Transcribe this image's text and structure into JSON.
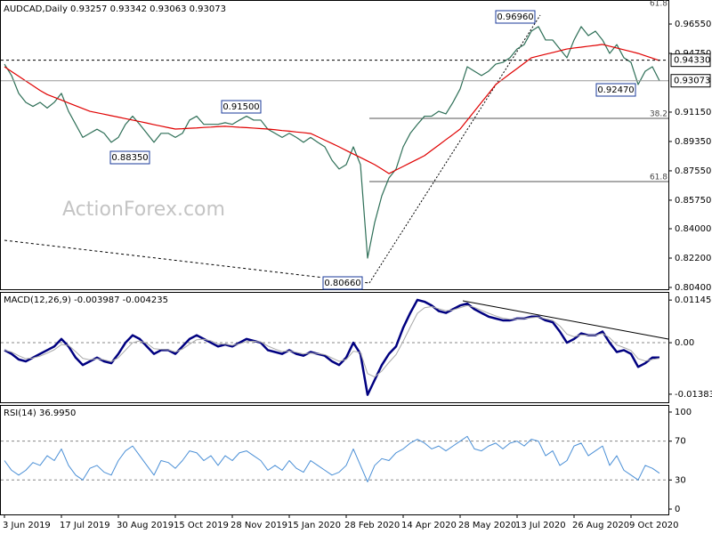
{
  "chart_data": [
    {
      "type": "line",
      "title": "AUDCAD,Daily 0.93257 0.93342 0.93063 0.93073",
      "watermark": "ActionForex.com",
      "ylim": [
        0.8029,
        0.9775
      ],
      "yticks": [
        {
          "value": 0.9655,
          "label": "0.96550"
        },
        {
          "value": 0.9475,
          "label": "0.94750"
        },
        {
          "value": 0.9115,
          "label": "0.91150"
        },
        {
          "value": 0.8935,
          "label": "0.89350"
        },
        {
          "value": 0.8755,
          "label": "0.87550"
        },
        {
          "value": 0.8575,
          "label": "0.85750"
        },
        {
          "value": 0.84,
          "label": "0.84000"
        },
        {
          "value": 0.822,
          "label": "0.82200"
        },
        {
          "value": 0.804,
          "label": "0.80400"
        }
      ],
      "price_lines": [
        {
          "value": 0.9433,
          "label": "0.94330",
          "style": "dashed"
        },
        {
          "value": 0.93073,
          "label": "0.93073",
          "style": "solid"
        }
      ],
      "annotations": [
        "0.96960",
        "0.91500",
        "0.88350",
        "0.80660",
        "0.92470"
      ],
      "fib_labels": [
        "61.8",
        "38.2",
        "61.8"
      ],
      "series": [
        {
          "color": "#2e6f57",
          "width": 1.2,
          "values": [
            0.9409,
            0.9339,
            0.923,
            0.9175,
            0.915,
            0.9175,
            0.914,
            0.9175,
            0.923,
            0.912,
            0.904,
            0.896,
            0.8985,
            0.901,
            0.8985,
            0.893,
            0.896,
            0.904,
            0.909,
            0.904,
            0.8985,
            0.893,
            0.8985,
            0.8985,
            0.896,
            0.8985,
            0.9066,
            0.909,
            0.904,
            0.904,
            0.904,
            0.905,
            0.904,
            0.9066,
            0.909,
            0.9066,
            0.9066,
            0.901,
            0.8985,
            0.896,
            0.8985,
            0.896,
            0.893,
            0.896,
            0.893,
            0.8902,
            0.882,
            0.8766,
            0.8793,
            0.8902,
            0.8793,
            0.822,
            0.8438,
            0.8602,
            0.8711,
            0.8766,
            0.8902,
            0.8985,
            0.904,
            0.909,
            0.909,
            0.912,
            0.9104,
            0.9175,
            0.9257,
            0.9393,
            0.9366,
            0.9339,
            0.9366,
            0.9409,
            0.942,
            0.9448,
            0.9502,
            0.9529,
            0.9611,
            0.9639,
            0.9557,
            0.9557,
            0.9502,
            0.9448,
            0.9557,
            0.9639,
            0.9584,
            0.9611,
            0.9557,
            0.9475,
            0.9529,
            0.9448,
            0.942,
            0.9284,
            0.9366,
            0.9393,
            0.9307
          ]
        },
        {
          "color": "#e00000",
          "width": 1.2,
          "values": [
            0.9393,
            0.9364,
            0.9335,
            0.9306,
            0.9277,
            0.9248,
            0.9223,
            0.9206,
            0.9189,
            0.9171,
            0.9154,
            0.9137,
            0.912,
            0.9111,
            0.9102,
            0.9093,
            0.9084,
            0.9075,
            0.9066,
            0.9057,
            0.9048,
            0.9038,
            0.9029,
            0.902,
            0.9011,
            0.9013,
            0.9016,
            0.9018,
            0.9021,
            0.9023,
            0.9026,
            0.9028,
            0.9025,
            0.9022,
            0.902,
            0.9017,
            0.9014,
            0.9011,
            0.9007,
            0.9002,
            0.8998,
            0.8993,
            0.8989,
            0.8984,
            0.8964,
            0.8943,
            0.8923,
            0.8902,
            0.888,
            0.8858,
            0.8837,
            0.8815,
            0.8793,
            0.8766,
            0.8738,
            0.876,
            0.8782,
            0.8804,
            0.8826,
            0.8848,
            0.8881,
            0.8913,
            0.8946,
            0.8978,
            0.9011,
            0.9066,
            0.912,
            0.9175,
            0.9229,
            0.9284,
            0.9317,
            0.935,
            0.9382,
            0.9415,
            0.9448,
            0.9459,
            0.947,
            0.948,
            0.9491,
            0.9502,
            0.9508,
            0.9513,
            0.9519,
            0.9524,
            0.953,
            0.9519,
            0.9508,
            0.9497,
            0.9486,
            0.9475,
            0.946,
            0.9446,
            0.9431
          ]
        }
      ]
    },
    {
      "type": "line",
      "title": "MACD(12,26,9) -0.003987 -0.004235",
      "ylim": [
        -0.016,
        0.0134
      ],
      "yticks": [
        0.011452,
        {
          "value": 0,
          "label": "0.00"
        },
        -0.013831
      ],
      "levels": [
        0
      ],
      "series": [
        {
          "color": "#000080",
          "width": 2.5,
          "values": [
            -0.002,
            -0.003,
            -0.0045,
            -0.005,
            -0.004,
            -0.003,
            -0.002,
            -0.001,
            0.001,
            -0.001,
            -0.004,
            -0.006,
            -0.005,
            -0.004,
            -0.005,
            -0.0055,
            -0.003,
            0,
            0.002,
            0.001,
            -0.001,
            -0.003,
            -0.002,
            -0.002,
            -0.003,
            -0.001,
            0.001,
            0.002,
            0.001,
            0,
            -0.001,
            -0.0005,
            -0.001,
            0,
            0.001,
            0.0005,
            0,
            -0.002,
            -0.0025,
            -0.003,
            -0.002,
            -0.003,
            -0.0035,
            -0.0025,
            -0.003,
            -0.0035,
            -0.005,
            -0.006,
            -0.004,
            0,
            -0.003,
            -0.014,
            -0.01,
            -0.006,
            -0.003,
            -0.001,
            0.004,
            0.008,
            0.0115,
            0.011,
            0.01,
            0.0085,
            0.008,
            0.009,
            0.01,
            0.0105,
            0.009,
            0.008,
            0.007,
            0.0065,
            0.006,
            0.006,
            0.0065,
            0.0065,
            0.007,
            0.007,
            0.006,
            0.0055,
            0.003,
            0,
            0.001,
            0.0025,
            0.002,
            0.002,
            0.003,
            0,
            -0.0025,
            -0.002,
            -0.003,
            -0.0065,
            -0.0055,
            -0.004,
            -0.004
          ]
        },
        {
          "color": "#a8a8a8",
          "width": 1,
          "values": [
            -0.002,
            -0.0025,
            -0.0035,
            -0.0043,
            -0.0041,
            -0.0036,
            -0.0028,
            -0.0019,
            -0.0005,
            -0.0007,
            -0.0024,
            -0.0042,
            -0.0046,
            -0.0043,
            -0.0046,
            -0.0051,
            -0.004,
            -0.002,
            0,
            0.0005,
            -0.0002,
            -0.0016,
            -0.0018,
            -0.0019,
            -0.0025,
            -0.0017,
            -0.0004,
            0.0008,
            0.0009,
            0.0005,
            -0.0003,
            -0.0004,
            -0.0007,
            -0.0003,
            0.0003,
            0.0004,
            0.0002,
            -0.0009,
            -0.0017,
            -0.0024,
            -0.0022,
            -0.0026,
            -0.003,
            -0.0028,
            -0.0029,
            -0.0032,
            -0.0041,
            -0.005,
            -0.0045,
            -0.0023,
            -0.0026,
            -0.0083,
            -0.0092,
            -0.0076,
            -0.0053,
            -0.0032,
            0.0004,
            0.0042,
            0.0079,
            0.0094,
            0.0097,
            0.0091,
            0.0086,
            0.0088,
            0.0094,
            0.01,
            0.0095,
            0.0087,
            0.0079,
            0.0072,
            0.0066,
            0.0063,
            0.0064,
            0.0065,
            0.0067,
            0.0069,
            0.0064,
            0.006,
            0.0045,
            0.0023,
            0.0016,
            0.0021,
            0.002,
            0.002,
            0.0025,
            0.0013,
            -0.0006,
            -0.0013,
            -0.0021,
            -0.0043,
            -0.0049,
            -0.0045,
            -0.0042
          ]
        }
      ]
    },
    {
      "type": "line",
      "title": "RSI(14) 36.9950",
      "ylim": [
        -5.5,
        106.4
      ],
      "yticks": [
        100,
        70,
        30,
        0
      ],
      "levels": [
        70,
        30
      ],
      "categories": [
        "3 Jun 2019",
        null,
        null,
        null,
        null,
        null,
        null,
        null,
        "17 Jul 2019",
        null,
        null,
        null,
        null,
        null,
        null,
        null,
        "30 Aug 2019",
        null,
        null,
        null,
        null,
        null,
        null,
        null,
        "15 Oct 2019",
        null,
        null,
        null,
        null,
        null,
        null,
        null,
        "28 Nov 2019",
        null,
        null,
        null,
        null,
        null,
        null,
        null,
        "15 Jan 2020",
        null,
        null,
        null,
        null,
        null,
        null,
        null,
        "28 Feb 2020",
        null,
        null,
        null,
        null,
        null,
        null,
        null,
        "14 Apr 2020",
        null,
        null,
        null,
        null,
        null,
        null,
        null,
        "28 May 2020",
        null,
        null,
        null,
        null,
        null,
        null,
        null,
        "13 Jul 2020",
        null,
        null,
        null,
        null,
        null,
        null,
        null,
        "26 Aug 2020",
        null,
        null,
        null,
        null,
        null,
        null,
        null,
        "9 Oct 2020",
        null,
        null,
        null,
        null
      ],
      "series": [
        {
          "color": "#4a8fd6",
          "width": 1,
          "values": [
            50,
            40,
            35,
            40,
            48,
            45,
            55,
            50,
            62,
            45,
            35,
            30,
            42,
            45,
            38,
            35,
            50,
            60,
            65,
            55,
            45,
            35,
            50,
            48,
            42,
            50,
            60,
            58,
            50,
            55,
            45,
            55,
            50,
            58,
            60,
            55,
            50,
            40,
            45,
            40,
            50,
            42,
            38,
            50,
            45,
            40,
            35,
            38,
            45,
            62,
            45,
            28,
            45,
            52,
            50,
            58,
            62,
            68,
            72,
            68,
            62,
            65,
            60,
            65,
            70,
            75,
            62,
            60,
            65,
            68,
            62,
            68,
            70,
            65,
            72,
            70,
            55,
            60,
            45,
            50,
            65,
            68,
            55,
            60,
            65,
            45,
            55,
            40,
            35,
            30,
            45,
            42,
            37
          ]
        }
      ]
    }
  ]
}
